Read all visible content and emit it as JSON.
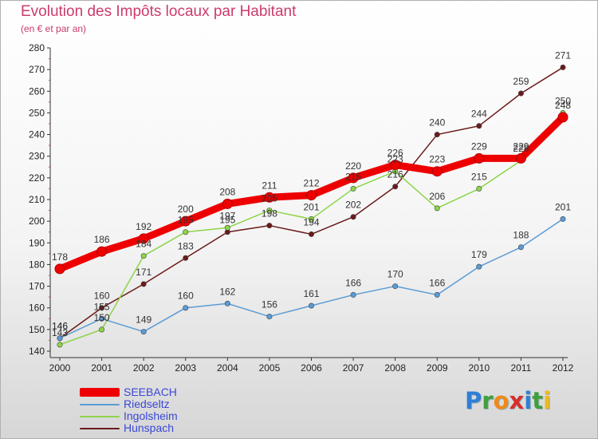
{
  "chart_data": {
    "type": "line",
    "title": "Evolution des Impôts locaux par Habitant",
    "subtitle": "(en € et par an)",
    "x": [
      "2000",
      "2001",
      "2002",
      "2003",
      "2004",
      "2005",
      "2006",
      "2007",
      "2008",
      "2009",
      "2010",
      "2011",
      "2012"
    ],
    "ylim": [
      140,
      280
    ],
    "yticks": [
      140,
      150,
      160,
      170,
      180,
      190,
      200,
      210,
      220,
      230,
      240,
      250,
      260,
      270,
      280
    ],
    "grid": false,
    "legend_position": "bottom-left",
    "series": [
      {
        "name": "SEEBACH",
        "color": "#ee0000",
        "values": [
          178,
          186,
          192,
          200,
          208,
          211,
          212,
          220,
          226,
          223,
          229,
          229,
          248
        ]
      },
      {
        "name": "Riedseltz",
        "color": "#5b9bd5",
        "values": [
          146,
          155,
          149,
          160,
          162,
          156,
          161,
          166,
          170,
          166,
          179,
          188,
          201
        ]
      },
      {
        "name": "Ingolsheim",
        "color": "#8ed44a",
        "values": [
          143,
          150,
          184,
          195,
          197,
          205,
          201,
          215,
          223,
          206,
          215,
          228,
          250
        ]
      },
      {
        "name": "Hunspach",
        "color": "#6b1a1a",
        "values": [
          146,
          160,
          171,
          183,
          195,
          198,
          194,
          202,
          216,
          240,
          244,
          259,
          271
        ]
      }
    ]
  },
  "logo": {
    "text": "Proxiti",
    "letters": [
      {
        "ch": "P",
        "color": "#2e7fd6"
      },
      {
        "ch": "r",
        "color": "#3ea03e"
      },
      {
        "ch": "o",
        "color": "#f08a1a"
      },
      {
        "ch": "x",
        "color": "#d62e2e"
      },
      {
        "ch": "i",
        "color": "#2e7fd6"
      },
      {
        "ch": "t",
        "color": "#3ea03e"
      },
      {
        "ch": "i",
        "color": "#f0b81a"
      }
    ]
  }
}
